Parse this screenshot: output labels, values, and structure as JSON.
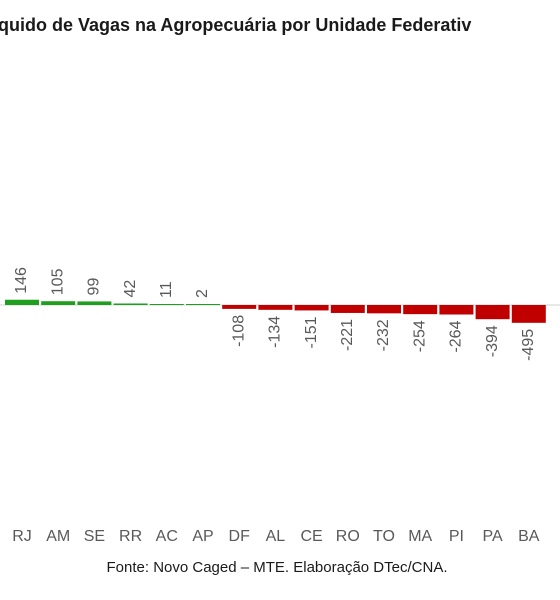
{
  "chart_data": {
    "type": "bar",
    "title": "quido de Vagas na Agropecuária por Unidade Federativ",
    "source": "Fonte: Novo Caged – MTE. Elaboração DTec/CNA.",
    "categories": [
      "RJ",
      "AM",
      "SE",
      "RR",
      "AC",
      "AP",
      "DF",
      "AL",
      "CE",
      "RO",
      "TO",
      "MA",
      "PI",
      "PA",
      "BA"
    ],
    "values": [
      146,
      105,
      99,
      42,
      11,
      2,
      -108,
      -134,
      -151,
      -221,
      -232,
      -254,
      -264,
      -394,
      -495
    ],
    "positive_color": "#1f9e1f",
    "negative_color": "#c00000"
  }
}
